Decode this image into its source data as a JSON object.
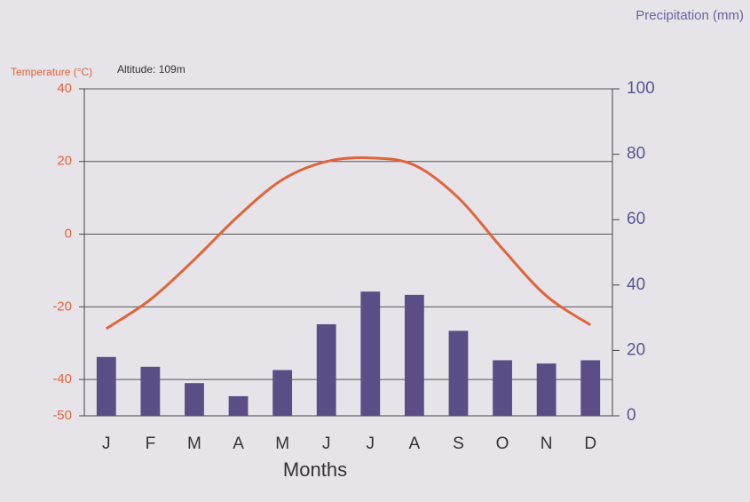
{
  "chart_data": {
    "type": "bar_line",
    "annotation": "Altitude: 109m",
    "x_label": "Months",
    "categories": [
      "J",
      "F",
      "M",
      "A",
      "M",
      "J",
      "J",
      "A",
      "S",
      "O",
      "N",
      "D"
    ],
    "series": [
      {
        "name": "Precipitation (mm)",
        "type": "bar",
        "axis": "y2",
        "color": "#5b4e86",
        "values": [
          18,
          15,
          10,
          6,
          14,
          28,
          38,
          37,
          26,
          17,
          16,
          17
        ]
      },
      {
        "name": "Temperature (°C)",
        "type": "line",
        "color": "#e0643c",
        "values": [
          -26,
          -18,
          -7,
          5,
          15,
          20,
          21,
          19,
          10,
          -4,
          -17,
          -25
        ]
      }
    ],
    "ylim": [
      -50,
      40
    ],
    "yticks": [
      -50,
      -40,
      -20,
      0,
      20,
      40
    ],
    "y2lim": [
      0,
      100
    ],
    "y2ticks": [
      0,
      20,
      40,
      60,
      80,
      100
    ],
    "grid": true
  }
}
